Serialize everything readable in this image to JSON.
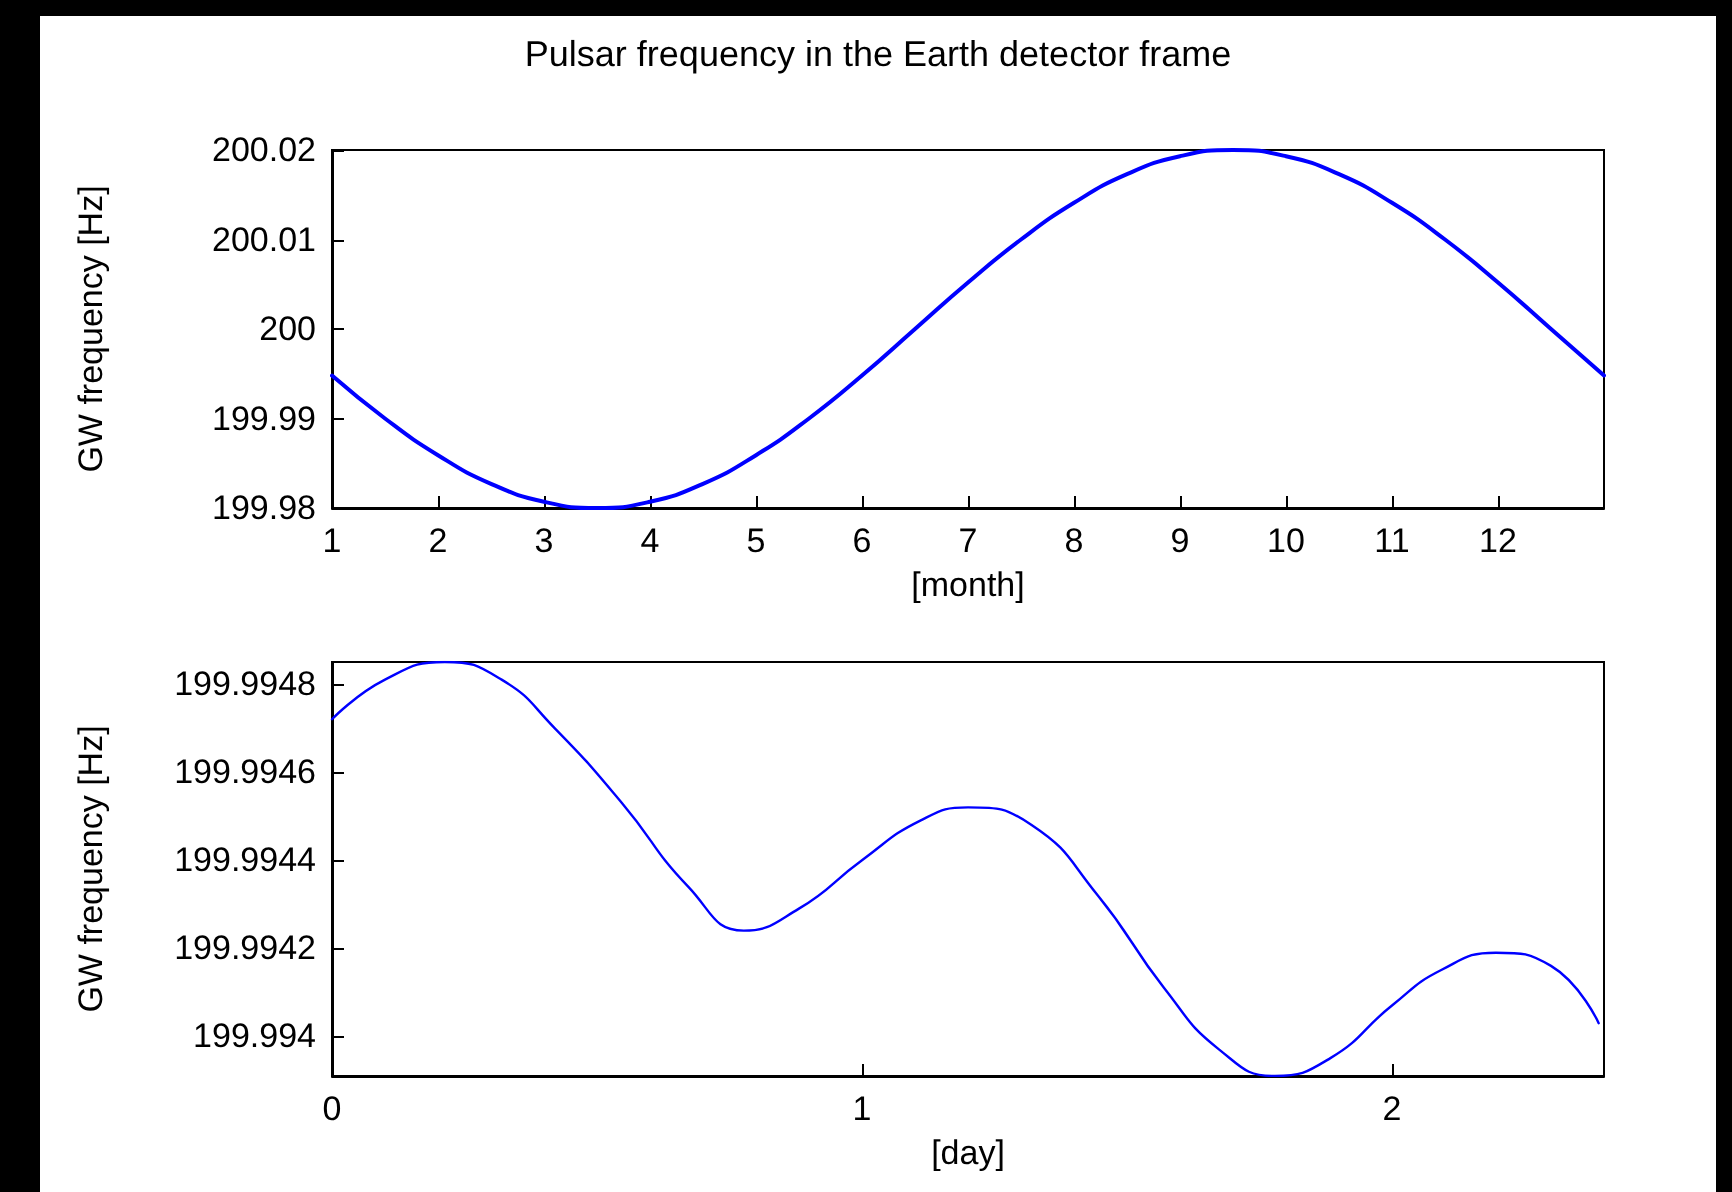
{
  "chart_data": [
    {
      "type": "line",
      "title": "Pulsar frequency in the Earth detector frame",
      "xlabel": "[month]",
      "ylabel": "GW frequency [Hz]",
      "x": [
        1,
        1.5,
        2,
        2.5,
        3,
        3.5,
        4,
        4.5,
        5,
        5.5,
        6,
        6.5,
        7,
        7.5,
        8,
        8.5,
        9,
        9.5,
        10,
        10.5,
        11,
        11.5,
        12,
        12.5,
        13
      ],
      "series": [
        {
          "color": "#0000ff",
          "values": [
            199.9948,
            199.99,
            199.9859,
            199.9827,
            199.9807,
            199.98,
            199.9807,
            199.9827,
            199.9859,
            199.99,
            199.9948,
            200.0,
            200.0052,
            200.01,
            200.0141,
            200.0173,
            200.0193,
            200.02,
            200.0193,
            200.0173,
            200.0141,
            200.01,
            200.0052,
            200.0,
            199.9948
          ]
        }
      ],
      "xlim": [
        1,
        13
      ],
      "xticks": [
        1,
        2,
        3,
        4,
        5,
        6,
        7,
        8,
        9,
        10,
        11,
        12
      ],
      "ylim": [
        199.98,
        200.02
      ],
      "yticks": [
        199.98,
        199.99,
        200,
        200.01,
        200.02
      ],
      "marker": "none",
      "line_style": "solid"
    },
    {
      "type": "line",
      "xlabel": "[day]",
      "ylabel": "GW frequency [Hz]",
      "x": [
        0,
        0.1,
        0.213,
        0.32,
        0.42,
        0.547,
        0.672,
        0.777,
        0.881,
        1.0,
        1.11,
        1.2,
        1.32,
        1.445,
        1.57,
        1.674,
        1.779,
        1.883,
        2.0,
        2.092,
        2.196,
        2.3,
        2.39
      ],
      "series": [
        {
          "color": "#0000ff",
          "values": [
            199.99472,
            199.99481,
            199.99485,
            199.99481,
            199.9947,
            199.99453,
            199.99434,
            199.99424,
            199.99429,
            199.9944,
            199.99449,
            199.99452,
            199.99448,
            199.99432,
            199.99411,
            199.99397,
            199.99391,
            199.99395,
            199.99407,
            199.99415,
            199.99419,
            199.99416,
            199.99403
          ]
        }
      ],
      "xlim": [
        0,
        2.4
      ],
      "xticks": [
        0,
        1,
        2
      ],
      "ylim": [
        199.99391,
        199.99485
      ],
      "yticks": [
        199.994,
        199.9942,
        199.9944,
        199.9946,
        199.9948
      ],
      "marker": "none",
      "line_style": "solid"
    }
  ]
}
